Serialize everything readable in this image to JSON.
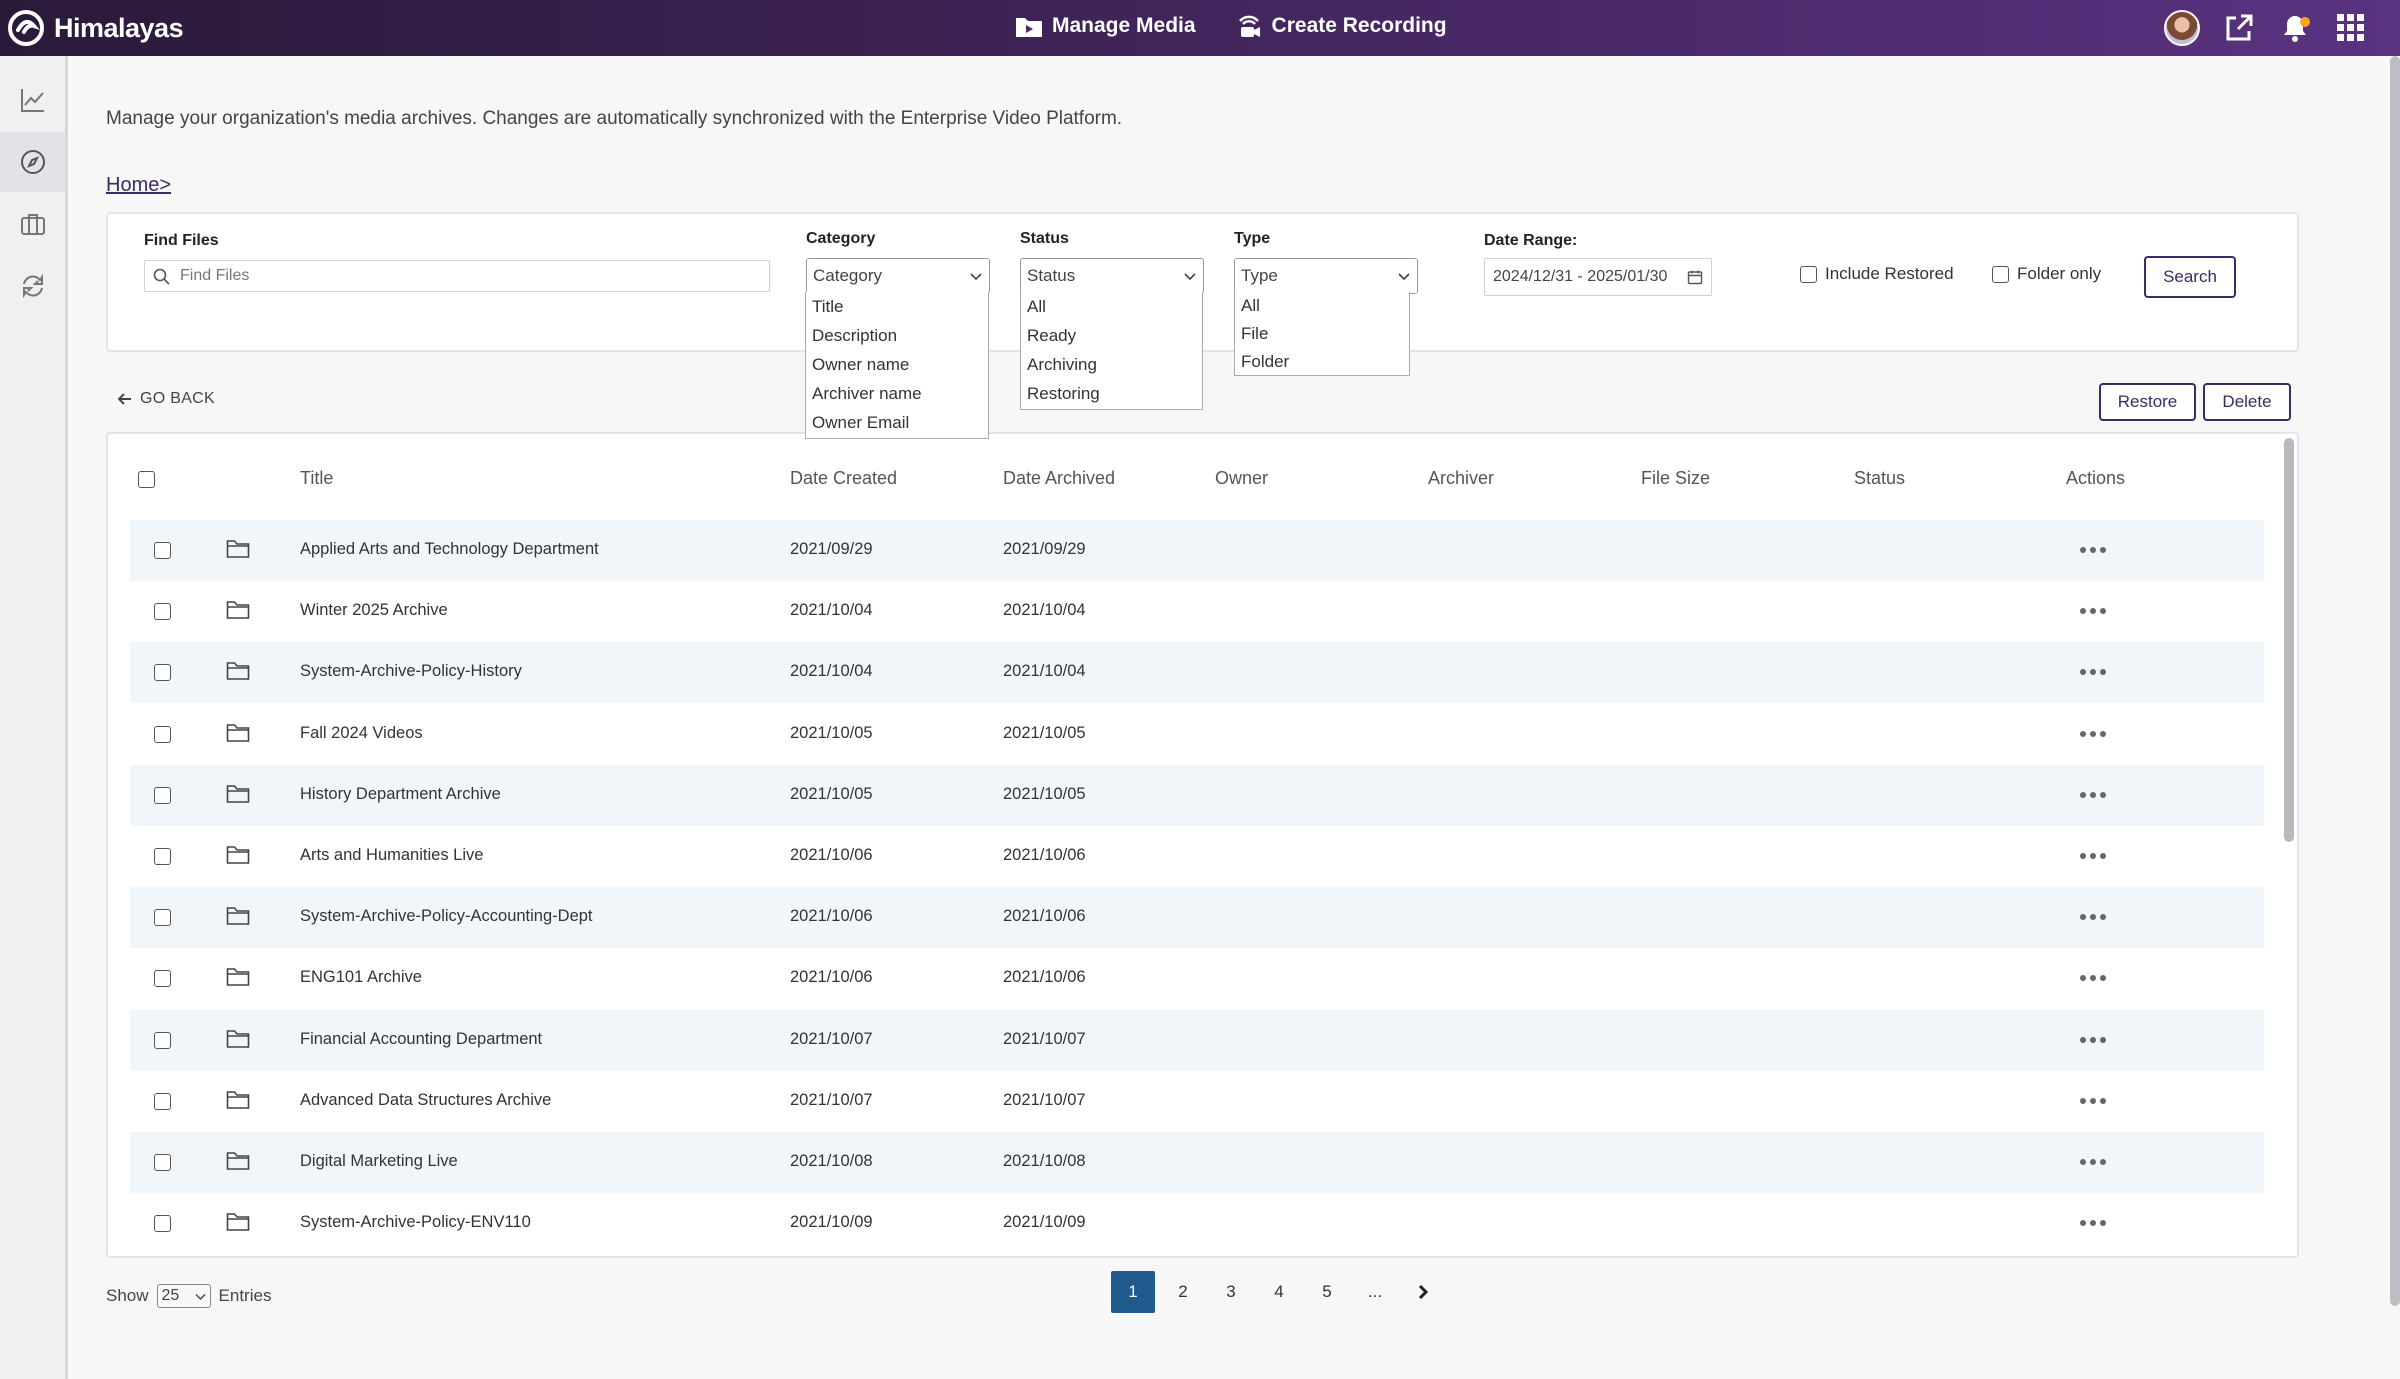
{
  "app": {
    "name": "Himalayas"
  },
  "topnav": [
    {
      "label": "Manage Media",
      "icon": "video-folder-icon"
    },
    {
      "label": "Create Recording",
      "icon": "recording-icon"
    }
  ],
  "topright_icons": [
    "user-avatar",
    "external-link-icon",
    "bell-icon",
    "apps-grid-icon"
  ],
  "sidebar": [
    "analytics-icon",
    "compass-icon",
    "briefcase-icon",
    "sync-icon"
  ],
  "page": {
    "description": "Manage your organization's media archives. Changes are automatically synchronized with the Enterprise Video Platform.",
    "breadcrumb": "Home>"
  },
  "filters": {
    "find_label": "Find Files",
    "find_placeholder": "Find Files",
    "category_label": "Category",
    "category_value": "Category",
    "category_options": [
      "Title",
      "Description",
      "Owner name",
      "Archiver name",
      "Owner Email"
    ],
    "status_label": "Status",
    "status_value": "Status",
    "status_options": [
      "All",
      "Ready",
      "Archiving",
      "Restoring"
    ],
    "type_label": "Type",
    "type_value": "Type",
    "type_options": [
      "All",
      "File",
      "Folder"
    ],
    "date_label": "Date Range:",
    "date_value": "2024/12/31 - 2025/01/30",
    "include_restored": "Include Restored",
    "folder_only": "Folder only",
    "search_button": "Search"
  },
  "actions": {
    "go_back": "GO BACK",
    "restore": "Restore",
    "delete": "Delete"
  },
  "table": {
    "columns": [
      "Title",
      "Date Created",
      "Date Archived",
      "Owner",
      "Archiver",
      "File Size",
      "Status",
      "Actions"
    ],
    "rows": [
      {
        "title": "Applied Arts and Technology Department",
        "created": "2021/09/29",
        "archived": "2021/09/29"
      },
      {
        "title": "Winter 2025 Archive",
        "created": "2021/10/04",
        "archived": "2021/10/04"
      },
      {
        "title": "System-Archive-Policy-History",
        "created": "2021/10/04",
        "archived": "2021/10/04"
      },
      {
        "title": "Fall 2024 Videos",
        "created": "2021/10/05",
        "archived": "2021/10/05"
      },
      {
        "title": "History Department Archive",
        "created": "2021/10/05",
        "archived": "2021/10/05"
      },
      {
        "title": "Arts and Humanities Live",
        "created": "2021/10/06",
        "archived": "2021/10/06"
      },
      {
        "title": "System-Archive-Policy-Accounting-Dept",
        "created": "2021/10/06",
        "archived": "2021/10/06"
      },
      {
        "title": "ENG101 Archive",
        "created": "2021/10/06",
        "archived": "2021/10/06"
      },
      {
        "title": "Financial Accounting Department",
        "created": "2021/10/07",
        "archived": "2021/10/07"
      },
      {
        "title": "Advanced Data Structures Archive",
        "created": "2021/10/07",
        "archived": "2021/10/07"
      },
      {
        "title": "Digital Marketing Live",
        "created": "2021/10/08",
        "archived": "2021/10/08"
      },
      {
        "title": "System-Archive-Policy-ENV110",
        "created": "2021/10/09",
        "archived": "2021/10/09"
      }
    ]
  },
  "footer": {
    "show_label": "Show",
    "entries_value": "25",
    "entries_label": "Entries",
    "pages": [
      "1",
      "2",
      "3",
      "4",
      "5",
      "..."
    ],
    "active_page": "1"
  },
  "colors": {
    "accent": "#3d2a63",
    "active_page": "#1f5a8e",
    "row_alt": "#f1f6fb"
  }
}
